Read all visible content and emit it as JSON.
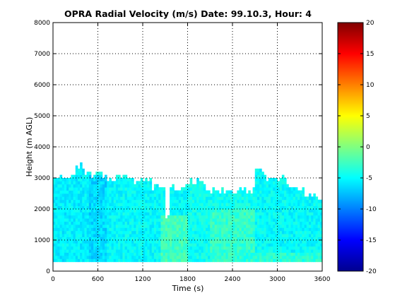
{
  "chart_data": {
    "type": "heatmap",
    "title": "OPRA Radial Velocity (m/s)  Date: 99.10.3, Hour: 4",
    "xlabel": "Time (s)",
    "ylabel": "Height (m AGL)",
    "xlim": [
      0,
      3600
    ],
    "ylim": [
      0,
      8000
    ],
    "xticks": [
      0,
      600,
      1200,
      1800,
      2400,
      3000,
      3600
    ],
    "yticks": [
      0,
      1000,
      2000,
      3000,
      4000,
      5000,
      6000,
      7000,
      8000
    ],
    "grid": "dotted",
    "colorbar": {
      "colormap": "jet",
      "range": [
        -20,
        20
      ],
      "ticks": [
        -20,
        -15,
        -10,
        -5,
        0,
        5,
        10,
        15,
        20
      ]
    },
    "data_bottom": 300,
    "time_step": 30,
    "cell_height": 100,
    "top_profile": [
      {
        "t0": 0,
        "t1": 300,
        "top": 3000
      },
      {
        "t0": 300,
        "t1": 420,
        "top": 3400
      },
      {
        "t0": 420,
        "t1": 720,
        "top": 3100
      },
      {
        "t0": 720,
        "t1": 1080,
        "top": 3000
      },
      {
        "t0": 1080,
        "t1": 1320,
        "top": 2900
      },
      {
        "t0": 1320,
        "t1": 1500,
        "top": 2700
      },
      {
        "t0": 1500,
        "t1": 1560,
        "top": 1800
      },
      {
        "t0": 1560,
        "t1": 1800,
        "top": 2700
      },
      {
        "t0": 1800,
        "t1": 2040,
        "top": 2900
      },
      {
        "t0": 2040,
        "t1": 2700,
        "top": 2600
      },
      {
        "t0": 2700,
        "t1": 2820,
        "top": 3200
      },
      {
        "t0": 2820,
        "t1": 3120,
        "top": 3000
      },
      {
        "t0": 3120,
        "t1": 3360,
        "top": 2700
      },
      {
        "t0": 3360,
        "t1": 3600,
        "top": 2400
      }
    ],
    "velocity_regions": [
      {
        "t0": 0,
        "t1": 480,
        "h0": 300,
        "h1": 3400,
        "v": -5.5
      },
      {
        "t0": 480,
        "t1": 720,
        "h0": 300,
        "h1": 3100,
        "v": -6.5
      },
      {
        "t0": 720,
        "t1": 1500,
        "h0": 300,
        "h1": 3000,
        "v": -5.0
      },
      {
        "t0": 1440,
        "t1": 1800,
        "h0": 300,
        "h1": 1800,
        "v": -2.5
      },
      {
        "t0": 1800,
        "t1": 2700,
        "h0": 300,
        "h1": 2900,
        "v": -4.5
      },
      {
        "t0": 2100,
        "t1": 2700,
        "h0": 300,
        "h1": 2000,
        "v": -3.0
      },
      {
        "t0": 2700,
        "t1": 3600,
        "h0": 300,
        "h1": 3200,
        "v": -5.0
      },
      {
        "t0": 2400,
        "t1": 3600,
        "h0": 300,
        "h1": 600,
        "v": -3.5
      }
    ]
  }
}
